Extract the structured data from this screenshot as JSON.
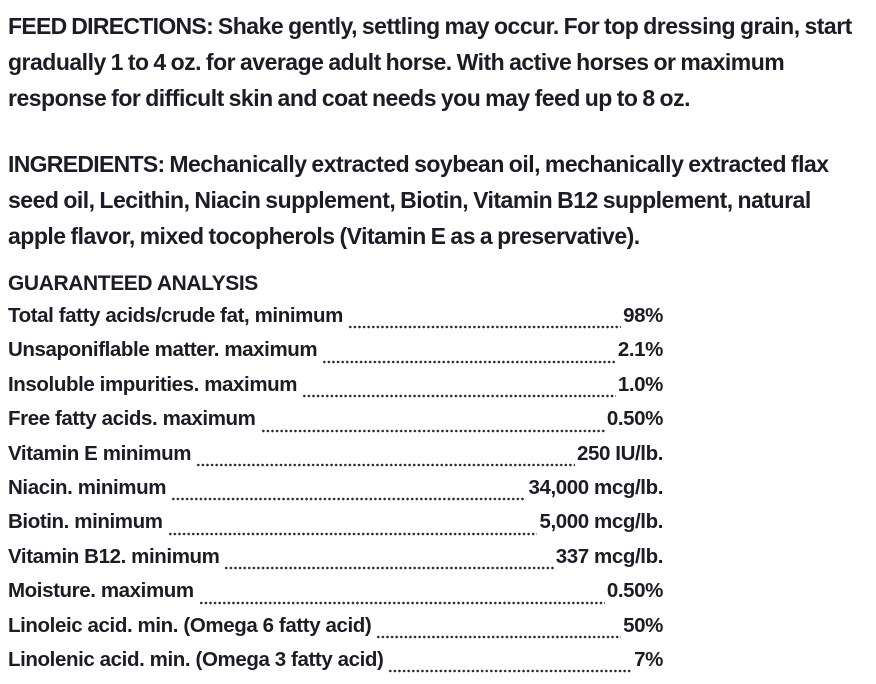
{
  "document": {
    "feed_directions": {
      "heading": "FEED DIRECTIONS:",
      "text": "Shake gently, settling may occur. For top dressing grain, start gradually 1 to 4 oz. for average adult horse. With active horses or maximum response for difficult skin and coat needs you may feed up to 8 oz."
    },
    "ingredients": {
      "heading": "INGREDIENTS:",
      "text": "Mechanically extracted soybean oil, mechanically extracted flax seed oil, Lecithin, Niacin supplement, Biotin, Vitamin B12 supplement, natural apple flavor, mixed tocopherols (Vitamin E as a preservative)."
    },
    "guaranteed_analysis": {
      "heading": "GUARANTEED ANALYSIS",
      "rows": [
        {
          "label": "Total fatty acids/crude fat, minimum",
          "value": "98%"
        },
        {
          "label": "Unsaponiflable matter. maximum",
          "value": "2.1%"
        },
        {
          "label": "Insoluble impurities. maximum",
          "value": "1.0%"
        },
        {
          "label": "Free fatty acids. maximum",
          "value": "0.50%"
        },
        {
          "label": "Vitamin E minimum",
          "value": "250 IU/lb."
        },
        {
          "label": "Niacin. minimum",
          "value": "34,000 mcg/lb."
        },
        {
          "label": "Biotin. minimum",
          "value": "5,000 mcg/lb."
        },
        {
          "label": "Vitamin B12. minimum",
          "value": "337 mcg/lb."
        },
        {
          "label": "Moisture. maximum",
          "value": "0.50%"
        },
        {
          "label": "Linoleic acid. min. (Omega 6 fatty acid)",
          "value": "50%"
        },
        {
          "label": "Linolenic acid. min. (Omega 3 fatty acid)",
          "value": "7%"
        }
      ]
    },
    "colors": {
      "text": "#1c1c26",
      "background": "#ffffff",
      "leader_dots": "#2b2b35"
    }
  }
}
